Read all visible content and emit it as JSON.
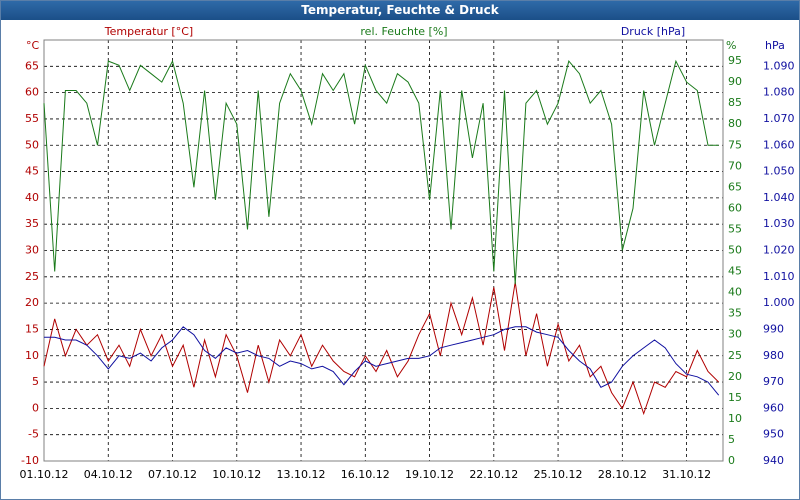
{
  "chart_data": {
    "type": "line",
    "title": "Temperatur, Feuchte & Druck",
    "ylabel": "°C",
    "y2label": "%",
    "y3label": "hPa",
    "x": [
      1,
      1.5,
      2,
      2.5,
      3,
      3.5,
      4,
      4.5,
      5,
      5.5,
      6,
      6.5,
      7,
      7.5,
      8,
      8.5,
      9,
      9.5,
      10,
      10.5,
      11,
      11.5,
      12,
      12.5,
      13,
      13.5,
      14,
      14.5,
      15,
      15.5,
      16,
      16.5,
      17,
      17.5,
      18,
      18.5,
      19,
      19.5,
      20,
      20.5,
      21,
      21.5,
      22,
      22.5,
      23,
      23.5,
      24,
      24.5,
      25,
      25.5,
      26,
      26.5,
      27,
      27.5,
      28,
      28.5,
      29,
      29.5,
      30,
      30.5,
      31,
      31.5,
      32,
      32.5
    ],
    "xlim": [
      1,
      32.7
    ],
    "xticks": [
      {
        "value": 1,
        "label": "01.10.12"
      },
      {
        "value": 4,
        "label": "04.10.12"
      },
      {
        "value": 7,
        "label": "07.10.12"
      },
      {
        "value": 10,
        "label": "10.10.12"
      },
      {
        "value": 13,
        "label": "13.10.12"
      },
      {
        "value": 16,
        "label": "16.10.12"
      },
      {
        "value": 19,
        "label": "19.10.12"
      },
      {
        "value": 22,
        "label": "22.10.12"
      },
      {
        "value": 25,
        "label": "25.10.12"
      },
      {
        "value": 28,
        "label": "28.10.12"
      },
      {
        "value": 31,
        "label": "31.10.12"
      }
    ],
    "ylim": [
      -10,
      70
    ],
    "yticks": [
      -10,
      -5,
      0,
      5,
      10,
      15,
      20,
      25,
      30,
      35,
      40,
      45,
      50,
      55,
      60,
      65
    ],
    "y2lim": [
      0,
      100
    ],
    "y2ticks": [
      0,
      5,
      10,
      15,
      20,
      25,
      30,
      35,
      40,
      45,
      50,
      55,
      60,
      65,
      70,
      75,
      80,
      85,
      90,
      95
    ],
    "y3lim": [
      940,
      1100
    ],
    "y3ticks": [
      940,
      950,
      960,
      970,
      980,
      990,
      {
        "value": 1000,
        "label": "1.000"
      },
      {
        "value": 1010,
        "label": "1.010"
      },
      {
        "value": 1020,
        "label": "1.020"
      },
      {
        "value": 1030,
        "label": "1.030"
      },
      {
        "value": 1040,
        "label": "1.040"
      },
      {
        "value": 1050,
        "label": "1.050"
      },
      {
        "value": 1060,
        "label": "1.060"
      },
      {
        "value": 1070,
        "label": "1.070"
      },
      {
        "value": 1080,
        "label": "1.080"
      },
      {
        "value": 1090,
        "label": "1.090"
      }
    ],
    "grid": true,
    "series": [
      {
        "name": "Temperatur [°C]",
        "color": "#b00000",
        "axis": "y",
        "values": [
          8,
          17,
          10,
          15,
          12,
          14,
          9,
          12,
          8,
          15,
          10,
          14,
          8,
          12,
          4,
          13,
          6,
          14,
          10,
          3,
          12,
          5,
          13,
          10,
          14,
          8,
          12,
          9,
          7,
          6,
          10,
          7,
          11,
          6,
          9,
          14,
          18,
          10,
          20,
          14,
          21,
          12,
          23,
          11,
          24,
          10,
          18,
          8,
          16,
          9,
          12,
          6,
          8,
          3,
          0,
          5,
          -1,
          5,
          4,
          7,
          6,
          11,
          7,
          5
        ]
      },
      {
        "name": "rel. Feuchte [%]",
        "color": "#1a7a1a",
        "axis": "y2",
        "values": [
          85,
          45,
          88,
          88,
          85,
          75,
          95,
          94,
          88,
          94,
          92,
          90,
          95,
          85,
          65,
          88,
          62,
          85,
          80,
          55,
          88,
          58,
          85,
          92,
          88,
          80,
          92,
          88,
          92,
          80,
          94,
          88,
          85,
          92,
          90,
          85,
          62,
          88,
          55,
          88,
          72,
          85,
          45,
          88,
          42,
          85,
          88,
          80,
          85,
          95,
          92,
          85,
          88,
          80,
          50,
          60,
          88,
          75,
          85,
          95,
          90,
          88,
          75,
          75
        ]
      },
      {
        "name": "Druck [hPa]",
        "color": "#1010a0",
        "axis": "y3",
        "values": [
          987,
          987,
          986,
          986,
          984,
          980,
          975,
          980,
          979,
          981,
          978,
          983,
          986,
          991,
          988,
          982,
          979,
          983,
          981,
          982,
          980,
          979,
          976,
          978,
          977,
          975,
          976,
          974,
          969,
          974,
          978,
          976,
          977,
          978,
          979,
          979,
          980,
          983,
          984,
          985,
          986,
          987,
          988,
          990,
          991,
          991,
          989,
          988,
          987,
          982,
          978,
          975,
          968,
          970,
          976,
          980,
          983,
          986,
          983,
          977,
          973,
          972,
          970,
          965
        ]
      }
    ]
  }
}
